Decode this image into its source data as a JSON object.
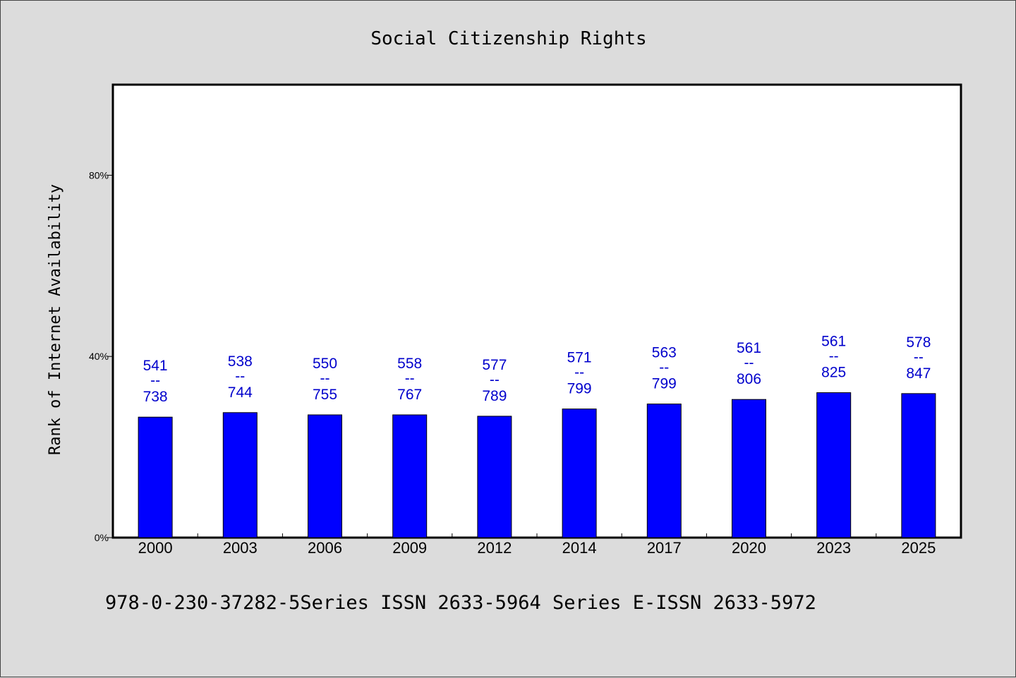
{
  "chart_data": {
    "type": "bar",
    "title": "Social Citizenship Rights",
    "ylabel": "Rank of Internet Availability",
    "xlabel": "",
    "categories": [
      "2000",
      "2003",
      "2006",
      "2009",
      "2012",
      "2014",
      "2017",
      "2020",
      "2023",
      "2025"
    ],
    "values": [
      26.6,
      27.6,
      27.1,
      27.1,
      26.8,
      28.4,
      29.5,
      30.5,
      32.0,
      31.8
    ],
    "data_labels": [
      [
        "541",
        "--",
        "738"
      ],
      [
        "538",
        "--",
        "744"
      ],
      [
        "550",
        "--",
        "755"
      ],
      [
        "558",
        "--",
        "767"
      ],
      [
        "577",
        "--",
        "789"
      ],
      [
        "571",
        "--",
        "799"
      ],
      [
        "563",
        "--",
        "799"
      ],
      [
        "561",
        "--",
        "806"
      ],
      [
        "561",
        "--",
        "825"
      ],
      [
        "578",
        "--",
        "847"
      ]
    ],
    "ylim": [
      0,
      100
    ],
    "yticks": [
      0,
      40,
      80
    ],
    "ytick_labels": [
      "0%",
      "40%",
      "80%"
    ],
    "grid": false,
    "bar_color": "#0000ff",
    "label_color": "#0000cc"
  },
  "footer": {
    "text": "978-0-230-37282-5Series ISSN 2633-5964 Series E-ISSN 2633-5972"
  }
}
